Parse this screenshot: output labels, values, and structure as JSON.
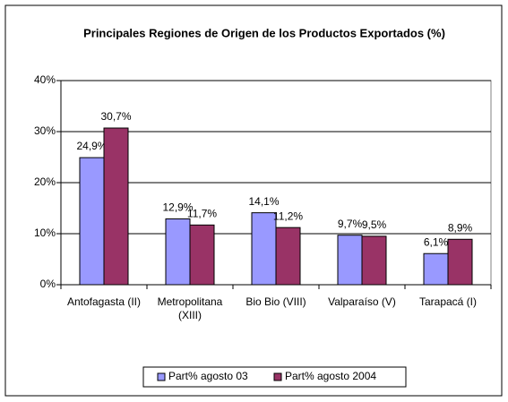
{
  "chart_data": {
    "type": "bar",
    "title": "Principales Regiones de Origen de los Productos Exportados (%)",
    "categories": [
      "Antofagasta (II)",
      "Metropolitana\n(XIII)",
      "Bio Bio (VIII)",
      "Valparaíso (V)",
      "Tarapacá (I)"
    ],
    "series": [
      {
        "name": "Part% agosto 03",
        "color": "#9999ff",
        "values": [
          24.9,
          12.9,
          14.1,
          9.7,
          6.1
        ],
        "value_labels": [
          "24,9%",
          "12,9%",
          "14,1%",
          "9,7%",
          "6,1%"
        ]
      },
      {
        "name": "Part% agosto 2004",
        "color": "#993366",
        "values": [
          30.7,
          11.7,
          11.2,
          9.5,
          8.9
        ],
        "value_labels": [
          "30,7%",
          "11,7%",
          "11,2%",
          "9,5%",
          "8,9%"
        ]
      }
    ],
    "ylim": [
      0,
      40
    ],
    "yticks": [
      {
        "value": 0,
        "label": "0%"
      },
      {
        "value": 10,
        "label": "10%"
      },
      {
        "value": 20,
        "label": "20%"
      },
      {
        "value": 30,
        "label": "30%"
      },
      {
        "value": 40,
        "label": "40%"
      }
    ],
    "grid": true,
    "legend": "bottom"
  }
}
